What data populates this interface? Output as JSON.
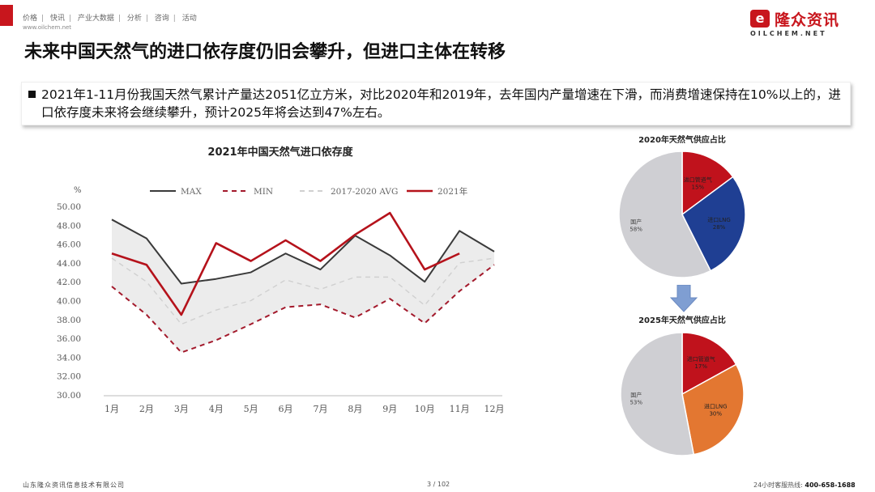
{
  "nav": {
    "items": [
      "价格",
      "快讯",
      "产业大数据",
      "分析",
      "咨询",
      "活动"
    ],
    "url": "www.oilchem.net"
  },
  "logo": {
    "cn": "隆众资讯",
    "en": "OILCHEM.NET",
    "mark": "e"
  },
  "title": "未来中国天然气的进口依存度仍旧会攀升，但进口主体在转移",
  "summary": "2021年1-11月份我国天然气累计产量达2051亿立方米，对比2020年和2019年，去年国内产量增速在下滑，而消费增速保持在10%以上的，进口依存度未来将会继续攀升，预计2025年将会达到47%左右。",
  "footer": {
    "company": "山东隆众资讯信息技术有限公司",
    "page": "3 / 102",
    "hotline_label": "24小时客服热线:",
    "hotline": "400-658-1688"
  },
  "colors": {
    "brand_red": "#c8161d",
    "arrow_blue": "#7f9ed2"
  },
  "chart_data": [
    {
      "type": "line",
      "title": "2021年中国天然气进口依存度",
      "ylabel": "%",
      "ylim": [
        30,
        50
      ],
      "yticks": [
        "30.00",
        "32.00",
        "34.00",
        "36.00",
        "38.00",
        "40.00",
        "42.00",
        "44.00",
        "46.00",
        "48.00",
        "50.00"
      ],
      "categories": [
        "1月",
        "2月",
        "3月",
        "4月",
        "5月",
        "6月",
        "7月",
        "8月",
        "9月",
        "10月",
        "11月",
        "12月"
      ],
      "legend_position": "top",
      "series": [
        {
          "name": "MAX",
          "color": "#3a3a3a",
          "style": "solid",
          "values": [
            48.6,
            46.6,
            41.8,
            42.3,
            43.0,
            45.0,
            43.3,
            46.9,
            44.8,
            42.0,
            47.4,
            45.2
          ]
        },
        {
          "name": "MIN",
          "color": "#a3192b",
          "style": "dashed",
          "values": [
            41.5,
            38.5,
            34.5,
            35.8,
            37.5,
            39.3,
            39.6,
            38.2,
            40.2,
            37.6,
            41.0,
            43.8
          ]
        },
        {
          "name": "2017-2020 AVG",
          "color": "#d0d0d0",
          "style": "dashed",
          "values": [
            44.5,
            42.0,
            37.5,
            39.0,
            40.0,
            42.2,
            41.2,
            42.5,
            42.5,
            39.5,
            44.0,
            44.5
          ]
        },
        {
          "name": "2021年",
          "color": "#b5121b",
          "style": "solid",
          "values": [
            45.0,
            43.8,
            38.5,
            46.1,
            44.2,
            46.4,
            44.2,
            47.0,
            49.3,
            43.3,
            45.0,
            null
          ]
        }
      ]
    },
    {
      "type": "pie",
      "title": "2020年天然气供应占比",
      "slices": [
        {
          "name": "进口管道气",
          "value": 15,
          "label": "15%",
          "color": "#c0121c"
        },
        {
          "name": "进口LNG",
          "value": 28,
          "label": "28%",
          "color": "#1f3f93"
        },
        {
          "name": "国产",
          "value": 58,
          "label": "58%",
          "color": "#cfcfd3"
        }
      ]
    },
    {
      "type": "pie",
      "title": "2025年天然气供应占比",
      "slices": [
        {
          "name": "进口管道气",
          "value": 17,
          "label": "17%",
          "color": "#c0121c"
        },
        {
          "name": "进口LNG",
          "value": 30,
          "label": "30%",
          "color": "#e37731"
        },
        {
          "name": "国产",
          "value": 53,
          "label": "53%",
          "color": "#cfcfd3"
        }
      ]
    }
  ]
}
